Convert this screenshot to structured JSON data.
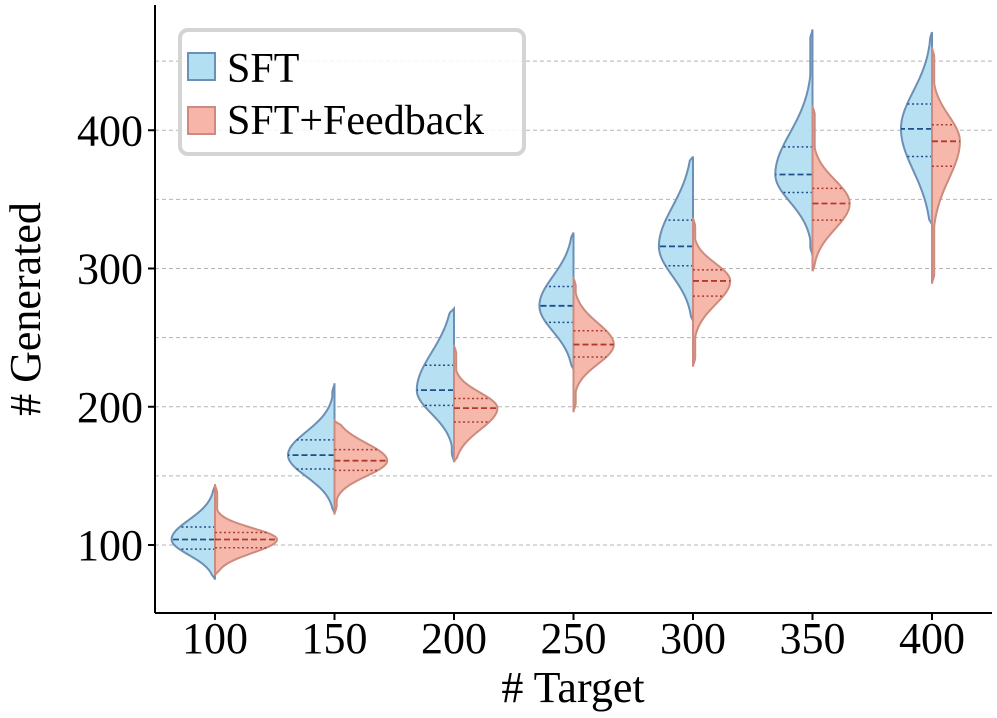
{
  "chart_data": {
    "type": "violin",
    "title": "",
    "xlabel": "# Target",
    "ylabel": "# Generated",
    "categories": [
      "100",
      "150",
      "200",
      "250",
      "300",
      "350",
      "400"
    ],
    "x_values": [
      100,
      150,
      200,
      250,
      300,
      350,
      400
    ],
    "ylim": [
      50,
      480
    ],
    "yticks": [
      100,
      200,
      300,
      400
    ],
    "ytick_labels": [
      "100",
      "200",
      "300",
      "400"
    ],
    "grid": "horizontal dashed (major and minor)",
    "legend_position": "top-left",
    "series": [
      {
        "name": "SFT",
        "side": "left",
        "fill": "#b3dff2",
        "edge": "#6b8fb5",
        "quartile_color": "#1f4e8c",
        "min": [
          75,
          123,
          160,
          227,
          262,
          309,
          332
        ],
        "max": [
          143,
          217,
          271,
          326,
          381,
          473,
          471
        ],
        "median": [
          104,
          165,
          212,
          273,
          316,
          368,
          401
        ],
        "q1": [
          97,
          155,
          201,
          261,
          302,
          355,
          381
        ],
        "q3": [
          113,
          176,
          230,
          287,
          335,
          388,
          419
        ],
        "peak_width": [
          0.7,
          0.75,
          0.6,
          0.55,
          0.55,
          0.6,
          0.5
        ]
      },
      {
        "name": "SFT+Feedback",
        "side": "right",
        "fill": "#f7b4a8",
        "edge": "#cc8b7e",
        "quartile_color": "#b03a2e",
        "min": [
          78,
          122,
          160,
          196,
          229,
          298,
          289
        ],
        "max": [
          144,
          190,
          245,
          294,
          337,
          418,
          460
        ],
        "median": [
          104,
          161,
          199,
          245,
          291,
          347,
          392
        ],
        "q1": [
          98,
          154,
          189,
          236,
          280,
          335,
          374
        ],
        "q3": [
          109,
          169,
          206,
          255,
          299,
          358,
          404
        ],
        "peak_width": [
          1.0,
          0.85,
          0.7,
          0.65,
          0.6,
          0.6,
          0.45
        ]
      }
    ]
  }
}
